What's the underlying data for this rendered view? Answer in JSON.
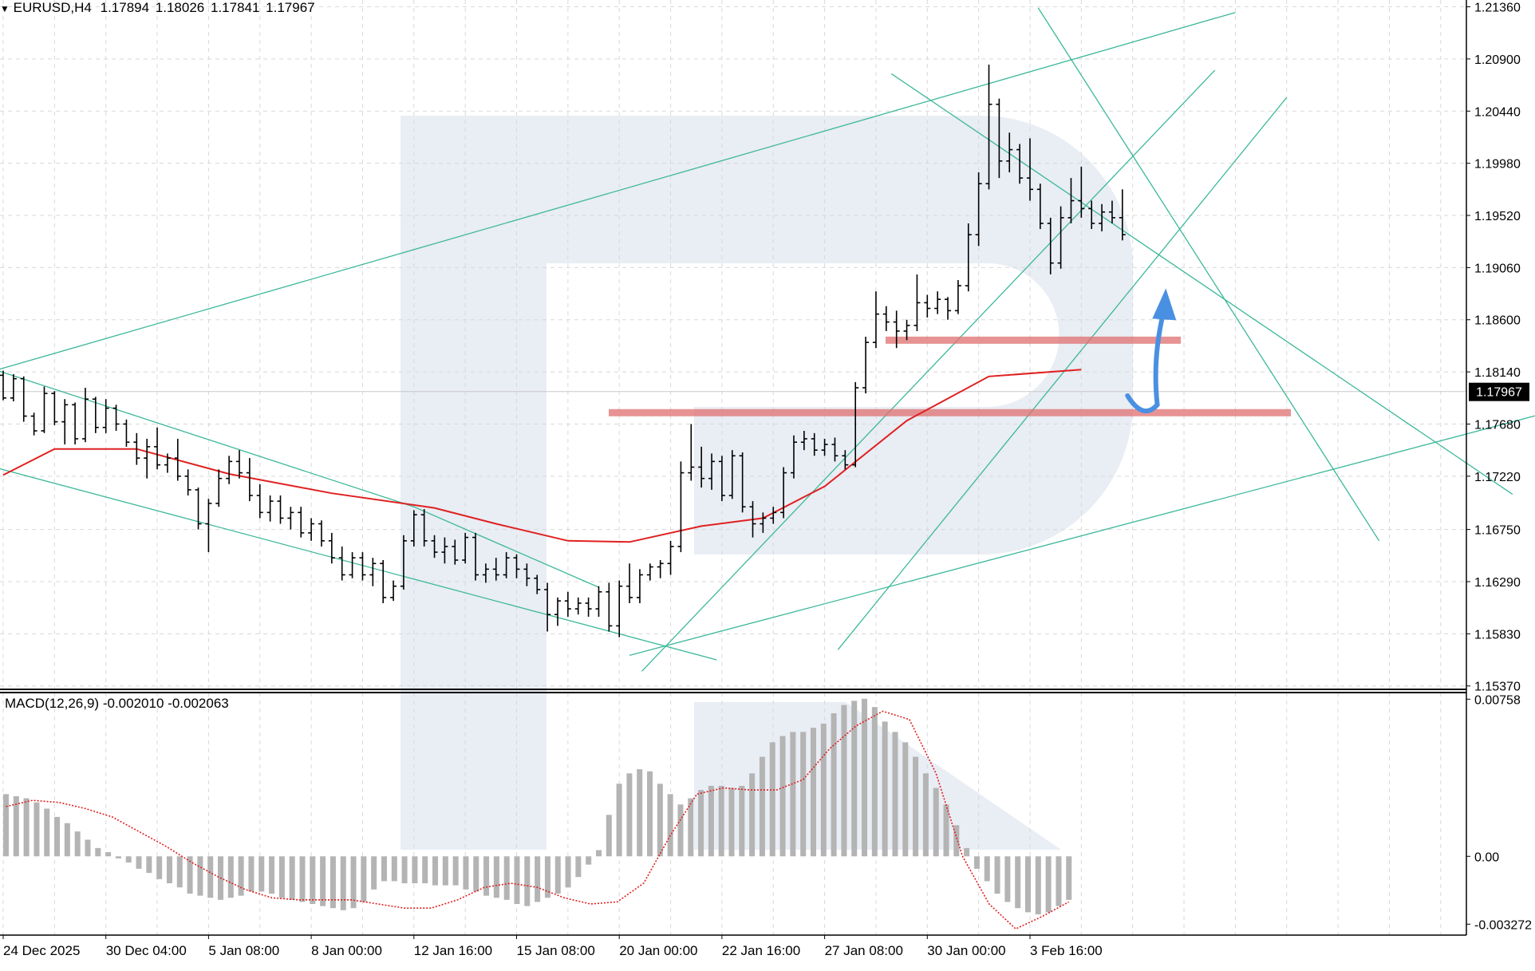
{
  "symbol_info": {
    "symbol": "EURUSD,H4",
    "open": "1.17894",
    "high": "1.18026",
    "low": "1.17841",
    "close": "1.17967"
  },
  "current_price_label": "1.17967",
  "colors": {
    "candle": "#000000",
    "ma": "#e02020",
    "channel": "#3cb89a",
    "zone": "#e07070",
    "forecast_arrow": "#4a90e2",
    "histogram": "#b4b4b4",
    "signal": "#e02020",
    "watermark": "#e9edf4",
    "grid": "#d8d8d8"
  },
  "macd_info": {
    "label": "MACD(12,26,9)",
    "main_value": "-0.002010",
    "signal_value": "-0.002063"
  },
  "chart_data": [
    {
      "type": "candlestick",
      "timeframe": "H4",
      "x_ticks": [
        "24 Dec 2025",
        "30 Dec 04:00",
        "5 Jan 08:00",
        "8 Jan 00:00",
        "12 Jan 16:00",
        "15 Jan 08:00",
        "20 Jan 00:00",
        "22 Jan 16:00",
        "27 Jan 08:00",
        "30 Jan 00:00",
        "3 Feb 16:00"
      ],
      "y_ticks": [
        "1.21360",
        "1.20900",
        "1.20440",
        "1.19980",
        "1.19520",
        "1.19060",
        "1.18600",
        "1.18140",
        "1.17680",
        "1.17220",
        "1.16750",
        "1.16290",
        "1.15830",
        "1.15370"
      ],
      "ylim": [
        1.1534,
        1.2142
      ],
      "grid": true,
      "ma_line": {
        "anchors": [
          [
            0,
            1.1723
          ],
          [
            0.5,
            1.1746
          ],
          [
            1.3,
            1.1746
          ],
          [
            2.2,
            1.1724
          ],
          [
            3.2,
            1.1707
          ],
          [
            4.2,
            1.1694
          ],
          [
            4.8,
            1.168
          ],
          [
            5.5,
            1.1665
          ],
          [
            6.1,
            1.1664
          ],
          [
            6.8,
            1.1678
          ],
          [
            7.4,
            1.1685
          ],
          [
            8.0,
            1.1713
          ],
          [
            8.8,
            1.1771
          ],
          [
            9.6,
            1.181
          ],
          [
            10.5,
            1.1816
          ]
        ]
      },
      "support_zone": 1.1778,
      "resistance_zone": 1.1842,
      "candles": [
        [
          0,
          1.1811,
          1.1815,
          1.1789,
          1.1791
        ],
        [
          0.1,
          1.1791,
          1.1812,
          1.1788,
          1.1808
        ],
        [
          0.2,
          1.1808,
          1.181,
          1.177,
          1.1775
        ],
        [
          0.3,
          1.1775,
          1.1778,
          1.1758,
          1.1762
        ],
        [
          0.4,
          1.1762,
          1.1801,
          1.176,
          1.1795
        ],
        [
          0.5,
          1.1795,
          1.1797,
          1.1767,
          1.177
        ],
        [
          0.6,
          1.177,
          1.179,
          1.175,
          1.1785
        ],
        [
          0.7,
          1.1785,
          1.1787,
          1.175,
          1.1755
        ],
        [
          0.8,
          1.1755,
          1.18,
          1.1752,
          1.179
        ],
        [
          0.9,
          1.179,
          1.1792,
          1.176,
          1.1765
        ],
        [
          1.0,
          1.1765,
          1.179,
          1.176,
          1.1782
        ],
        [
          1.1,
          1.1782,
          1.1785,
          1.1762,
          1.1768
        ],
        [
          1.2,
          1.1768,
          1.1772,
          1.1748,
          1.1752
        ],
        [
          1.3,
          1.1752,
          1.176,
          1.1732,
          1.1738
        ],
        [
          1.4,
          1.1738,
          1.1755,
          1.172,
          1.1748
        ],
        [
          1.5,
          1.1748,
          1.1765,
          1.1728,
          1.1732
        ],
        [
          1.6,
          1.1732,
          1.1742,
          1.1725,
          1.1738
        ],
        [
          1.7,
          1.1738,
          1.1755,
          1.1718,
          1.1722
        ],
        [
          1.8,
          1.1722,
          1.1728,
          1.1705,
          1.171
        ],
        [
          1.9,
          1.171,
          1.1712,
          1.1675,
          1.168
        ],
        [
          2.0,
          1.168,
          1.1702,
          1.1655,
          1.1698
        ],
        [
          2.1,
          1.1698,
          1.1728,
          1.1695,
          1.172
        ],
        [
          2.2,
          1.172,
          1.174,
          1.1715,
          1.1735
        ],
        [
          2.3,
          1.1735,
          1.1745,
          1.172,
          1.1725
        ],
        [
          2.4,
          1.1725,
          1.1738,
          1.17,
          1.1705
        ],
        [
          2.5,
          1.1705,
          1.1715,
          1.1685,
          1.169
        ],
        [
          2.6,
          1.169,
          1.1705,
          1.1682,
          1.17
        ],
        [
          2.7,
          1.17,
          1.1705,
          1.168,
          1.1685
        ],
        [
          2.8,
          1.1685,
          1.1695,
          1.1675,
          1.169
        ],
        [
          2.9,
          1.169,
          1.1695,
          1.1668,
          1.1672
        ],
        [
          3.0,
          1.1672,
          1.1685,
          1.1665,
          1.168
        ],
        [
          3.1,
          1.168,
          1.1683,
          1.166,
          1.1665
        ],
        [
          3.2,
          1.1665,
          1.1672,
          1.1645,
          1.165
        ],
        [
          3.3,
          1.165,
          1.166,
          1.163,
          1.1635
        ],
        [
          3.4,
          1.1635,
          1.1655,
          1.1632,
          1.165
        ],
        [
          3.5,
          1.165,
          1.1655,
          1.163,
          1.1635
        ],
        [
          3.6,
          1.1635,
          1.165,
          1.1625,
          1.1645
        ],
        [
          3.7,
          1.1645,
          1.1648,
          1.161,
          1.1615
        ],
        [
          3.8,
          1.1615,
          1.163,
          1.1612,
          1.1625
        ],
        [
          3.9,
          1.1625,
          1.167,
          1.1622,
          1.1665
        ],
        [
          4.0,
          1.1665,
          1.1692,
          1.166,
          1.1688
        ],
        [
          4.1,
          1.1688,
          1.1693,
          1.166,
          1.1665
        ],
        [
          4.2,
          1.1665,
          1.167,
          1.165,
          1.1655
        ],
        [
          4.3,
          1.1655,
          1.1668,
          1.1645,
          1.166
        ],
        [
          4.4,
          1.166,
          1.1666,
          1.1644,
          1.1648
        ],
        [
          4.5,
          1.1648,
          1.1672,
          1.1645,
          1.1668
        ],
        [
          4.6,
          1.1668,
          1.1672,
          1.163,
          1.1635
        ],
        [
          4.7,
          1.1635,
          1.1645,
          1.1628,
          1.164
        ],
        [
          4.8,
          1.164,
          1.165,
          1.163,
          1.1635
        ],
        [
          4.9,
          1.1635,
          1.1655,
          1.1632,
          1.165
        ],
        [
          5.0,
          1.165,
          1.1653,
          1.1632,
          1.164
        ],
        [
          5.1,
          1.164,
          1.1645,
          1.1625,
          1.1632
        ],
        [
          5.2,
          1.1632,
          1.1635,
          1.1618,
          1.1622
        ],
        [
          5.3,
          1.1622,
          1.1628,
          1.1585,
          1.16
        ],
        [
          5.4,
          1.16,
          1.1615,
          1.159,
          1.1612
        ],
        [
          5.5,
          1.1612,
          1.162,
          1.1598,
          1.1605
        ],
        [
          5.6,
          1.1605,
          1.1615,
          1.16,
          1.161
        ],
        [
          5.7,
          1.161,
          1.1615,
          1.1598,
          1.1605
        ],
        [
          5.8,
          1.1605,
          1.1625,
          1.1598,
          1.162
        ],
        [
          5.9,
          1.162,
          1.1628,
          1.1585,
          1.159
        ],
        [
          6.0,
          1.159,
          1.163,
          1.158,
          1.1625
        ],
        [
          6.1,
          1.1625,
          1.1645,
          1.161,
          1.1615
        ],
        [
          6.2,
          1.1615,
          1.164,
          1.161,
          1.1635
        ],
        [
          6.3,
          1.1635,
          1.1645,
          1.163,
          1.1642
        ],
        [
          6.4,
          1.1642,
          1.1648,
          1.1632,
          1.1645
        ],
        [
          6.5,
          1.1645,
          1.1665,
          1.1635,
          1.166
        ],
        [
          6.6,
          1.166,
          1.1735,
          1.1655,
          1.1725
        ],
        [
          6.7,
          1.1725,
          1.1768,
          1.1718,
          1.173
        ],
        [
          6.8,
          1.173,
          1.1748,
          1.1712,
          1.172
        ],
        [
          6.9,
          1.172,
          1.1742,
          1.171,
          1.1735
        ],
        [
          7.0,
          1.1735,
          1.174,
          1.17,
          1.1705
        ],
        [
          7.1,
          1.1705,
          1.1745,
          1.1702,
          1.174
        ],
        [
          7.2,
          1.174,
          1.1743,
          1.169,
          1.1695
        ],
        [
          7.3,
          1.1695,
          1.17,
          1.1668,
          1.168
        ],
        [
          7.4,
          1.168,
          1.169,
          1.1672,
          1.1685
        ],
        [
          7.5,
          1.1685,
          1.1695,
          1.168,
          1.169
        ],
        [
          7.6,
          1.169,
          1.173,
          1.1685,
          1.1725
        ],
        [
          7.7,
          1.1725,
          1.1758,
          1.172,
          1.1752
        ],
        [
          7.8,
          1.1752,
          1.1762,
          1.1745,
          1.1755
        ],
        [
          7.9,
          1.1755,
          1.176,
          1.174,
          1.1745
        ],
        [
          8.0,
          1.1745,
          1.1755,
          1.174,
          1.175
        ],
        [
          8.1,
          1.175,
          1.1756,
          1.1735,
          1.174
        ],
        [
          8.2,
          1.174,
          1.1745,
          1.1728,
          1.1732
        ],
        [
          8.3,
          1.1732,
          1.1805,
          1.173,
          1.18
        ],
        [
          8.4,
          1.18,
          1.1845,
          1.1795,
          1.184
        ],
        [
          8.5,
          1.184,
          1.1885,
          1.1835,
          1.1865
        ],
        [
          8.6,
          1.1865,
          1.1872,
          1.185,
          1.1858
        ],
        [
          8.7,
          1.1858,
          1.1868,
          1.1835,
          1.185
        ],
        [
          8.8,
          1.185,
          1.186,
          1.1842,
          1.1855
        ],
        [
          8.9,
          1.1855,
          1.19,
          1.185,
          1.1875
        ],
        [
          9.0,
          1.1875,
          1.1882,
          1.1862,
          1.187
        ],
        [
          9.1,
          1.187,
          1.1885,
          1.1865,
          1.1878
        ],
        [
          9.2,
          1.1878,
          1.188,
          1.186,
          1.1868
        ],
        [
          9.3,
          1.1868,
          1.1895,
          1.1865,
          1.189
        ],
        [
          9.4,
          1.189,
          1.1945,
          1.1885,
          1.1935
        ],
        [
          9.5,
          1.1935,
          1.199,
          1.1925,
          1.198
        ],
        [
          9.6,
          1.198,
          1.2085,
          1.1975,
          1.205
        ],
        [
          9.7,
          1.205,
          1.2055,
          1.1985,
          1.2
        ],
        [
          9.8,
          1.2,
          1.2025,
          1.199,
          1.201
        ],
        [
          9.9,
          1.201,
          1.2015,
          1.198,
          1.1985
        ],
        [
          10.0,
          1.1985,
          1.202,
          1.1965,
          1.1975
        ],
        [
          10.1,
          1.1975,
          1.198,
          1.194,
          1.1945
        ],
        [
          10.2,
          1.1945,
          1.195,
          1.19,
          1.191
        ],
        [
          10.3,
          1.191,
          1.196,
          1.1905,
          1.195
        ],
        [
          10.4,
          1.195,
          1.1985,
          1.1945,
          1.1965
        ],
        [
          10.5,
          1.1965,
          1.1995,
          1.195,
          1.1958
        ],
        [
          10.6,
          1.1958,
          1.1965,
          1.194,
          1.1945
        ],
        [
          10.7,
          1.1945,
          1.1962,
          1.1938,
          1.1955
        ],
        [
          10.8,
          1.1955,
          1.1965,
          1.1945,
          1.195
        ],
        [
          10.9,
          1.195,
          1.1975,
          1.193,
          1.1935
        ]
      ]
    },
    {
      "type": "bar",
      "title": "MACD(12,26,9)",
      "y_ticks": [
        "0.00758",
        "0.00",
        "-0.003272"
      ],
      "ylim": [
        -0.0038,
        0.0079
      ],
      "histogram": [
        0.003,
        0.0029,
        0.0028,
        0.0026,
        0.0023,
        0.0019,
        0.0016,
        0.0012,
        0.0008,
        0.0004,
        0.0002,
        -0.0001,
        -0.0003,
        -0.0006,
        -0.0008,
        -0.0011,
        -0.0013,
        -0.0015,
        -0.0018,
        -0.0019,
        -0.002,
        -0.0021,
        -0.002,
        -0.0019,
        -0.0017,
        -0.0017,
        -0.0018,
        -0.002,
        -0.0021,
        -0.0022,
        -0.0023,
        -0.0024,
        -0.0025,
        -0.0026,
        -0.0025,
        -0.0022,
        -0.0016,
        -0.0012,
        -0.0012,
        -0.0013,
        -0.0013,
        -0.0013,
        -0.0014,
        -0.0014,
        -0.0014,
        -0.0016,
        -0.0017,
        -0.0019,
        -0.002,
        -0.0021,
        -0.0023,
        -0.0024,
        -0.0022,
        -0.002,
        -0.0018,
        -0.0015,
        -0.001,
        -0.0004,
        0.0003,
        0.002,
        0.0035,
        0.004,
        0.0042,
        0.0041,
        0.0035,
        0.003,
        0.0025,
        0.0028,
        0.0032,
        0.0034,
        0.0034,
        0.0033,
        0.0034,
        0.004,
        0.0048,
        0.0055,
        0.0058,
        0.006,
        0.006,
        0.0062,
        0.0064,
        0.0069,
        0.0073,
        0.0075,
        0.0076,
        0.0072,
        0.0065,
        0.006,
        0.0055,
        0.0048,
        0.004,
        0.0033,
        0.0025,
        0.0015,
        0.0004,
        -0.0006,
        -0.0012,
        -0.0018,
        -0.0022,
        -0.0025,
        -0.0027,
        -0.0028,
        -0.0027,
        -0.0024,
        -0.0021
      ],
      "signal": [
        0.0024,
        0.0027,
        0.0026,
        0.0023,
        0.0019,
        0.0012,
        0.0005,
        -0.0003,
        -0.001,
        -0.0016,
        -0.002,
        -0.0021,
        -0.0021,
        -0.0021,
        -0.0023,
        -0.0025,
        -0.0025,
        -0.0021,
        -0.0015,
        -0.0013,
        -0.0015,
        -0.002,
        -0.0023,
        -0.0022,
        -0.0013,
        0.001,
        0.003,
        0.0033,
        0.0032,
        0.0032,
        0.0037,
        0.0052,
        0.0063,
        0.007,
        0.0066,
        0.004,
        0.0,
        -0.0023,
        -0.0035,
        -0.0029,
        -0.0022
      ]
    }
  ]
}
